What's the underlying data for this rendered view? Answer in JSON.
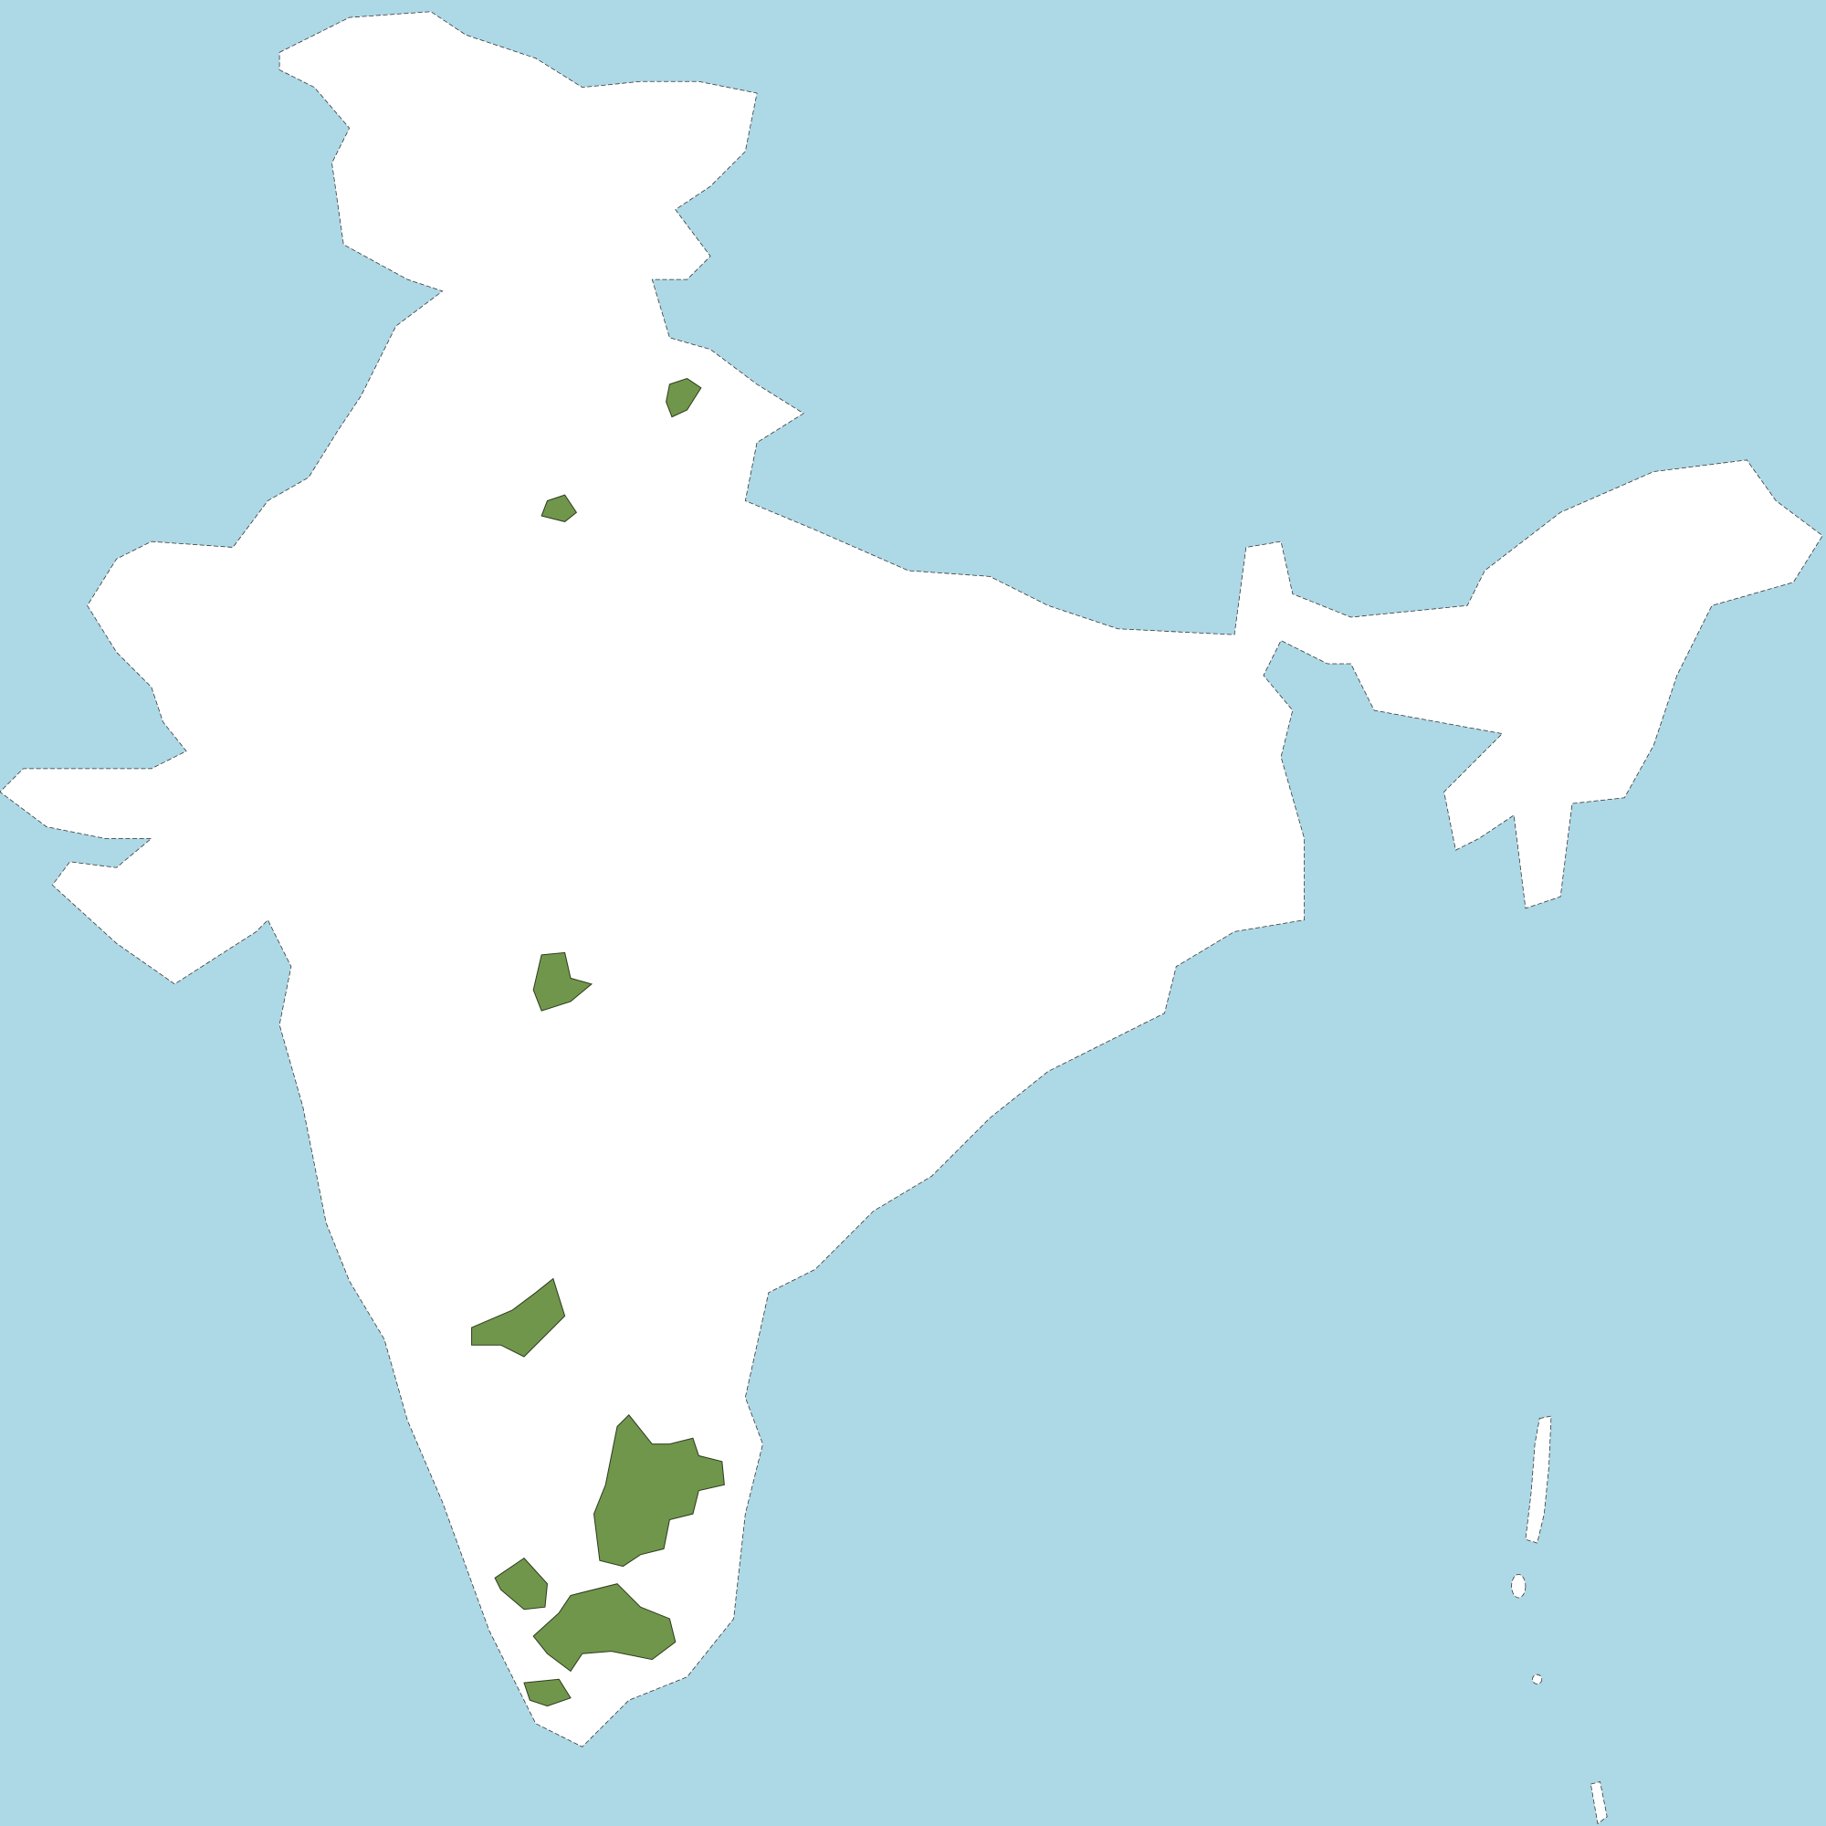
{
  "map": {
    "colors": {
      "water": "#ADD8E6",
      "land": "#FFFFFF",
      "highlighted_district": "#70964B",
      "border": "#333333"
    },
    "highlighted_district_count": 8
  }
}
